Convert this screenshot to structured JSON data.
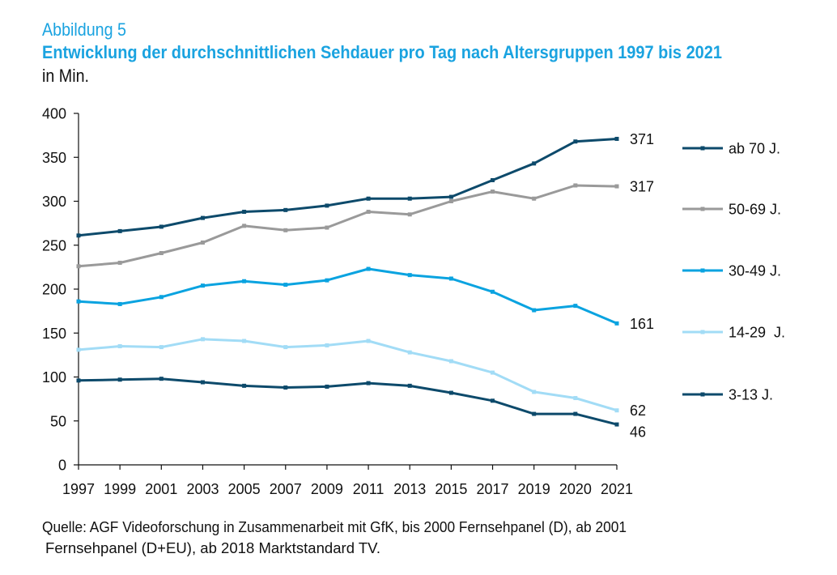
{
  "figure_label": "Abbildung 5",
  "source_lines": [
    "Quelle: AGF Videoforschung in Zusammenarbeit mit GfK, bis 2000 Fernsehpanel (D), ab 2001",
    "Fernsehpanel (D+EU), ab 2018 Marktstandard TV."
  ],
  "colors": {
    "title": "#1aa3e0",
    "axis": "#111111"
  },
  "chart_data": {
    "type": "line",
    "title": "Entwicklung der durchschnittlichen Sehdauer pro Tag nach Altersgruppen 1997 bis 2021",
    "ylabel": "in Min.",
    "xlabel": "",
    "categories": [
      "1997",
      "1999",
      "2001",
      "2003",
      "2005",
      "2007",
      "2009",
      "2011",
      "2013",
      "2015",
      "2017",
      "2019",
      "2020",
      "2021"
    ],
    "ylim": [
      0,
      400
    ],
    "yticks": [
      0,
      50,
      100,
      150,
      200,
      250,
      300,
      350,
      400
    ],
    "grid": false,
    "legend": "right",
    "series": [
      {
        "name": "ab 70 J.",
        "color": "#0d4a6b",
        "values": [
          261,
          266,
          271,
          281,
          288,
          290,
          295,
          303,
          303,
          305,
          324,
          343,
          368,
          371
        ]
      },
      {
        "name": "50-69 J.",
        "color": "#9a9a9a",
        "values": [
          226,
          230,
          241,
          253,
          272,
          267,
          270,
          288,
          285,
          300,
          311,
          303,
          318,
          317
        ]
      },
      {
        "name": "30-49 J.",
        "color": "#0aa3e0",
        "values": [
          186,
          183,
          191,
          204,
          209,
          205,
          210,
          223,
          216,
          212,
          197,
          176,
          181,
          161
        ]
      },
      {
        "name": "14-29  J.",
        "color": "#a2dcf6",
        "values": [
          131,
          135,
          134,
          143,
          141,
          134,
          136,
          141,
          128,
          118,
          105,
          83,
          76,
          62
        ]
      },
      {
        "name": "3-13 J.",
        "color": "#0d4a6b",
        "values": [
          96,
          97,
          98,
          94,
          90,
          88,
          89,
          93,
          90,
          82,
          73,
          58,
          58,
          46
        ]
      }
    ]
  }
}
